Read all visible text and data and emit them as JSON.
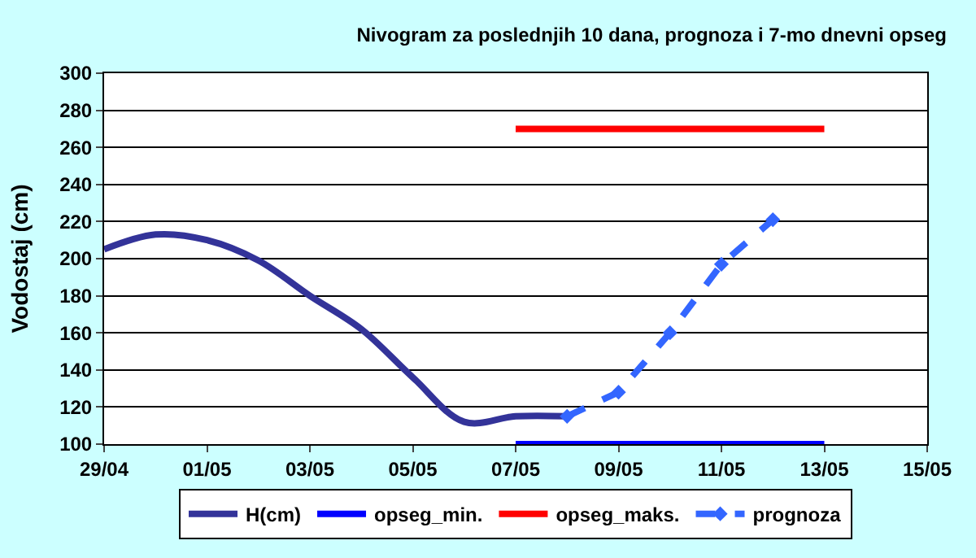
{
  "chart_data": {
    "type": "line",
    "title": "Nivogram za poslednjih 10 dana, prognoza i 7-mo dnevni opseg",
    "ylabel": "Vodostaj (cm)",
    "xlim": [
      "--04-29",
      "--05-15"
    ],
    "xticks": [
      {
        "value": "--04-29",
        "label": "29/04"
      },
      {
        "value": "--05-01",
        "label": "01/05"
      },
      {
        "value": "--05-03",
        "label": "03/05"
      },
      {
        "value": "--05-05",
        "label": "05/05"
      },
      {
        "value": "--05-07",
        "label": "07/05"
      },
      {
        "value": "--05-09",
        "label": "09/05"
      },
      {
        "value": "--05-11",
        "label": "11/05"
      },
      {
        "value": "--05-13",
        "label": "13/05"
      },
      {
        "value": "--05-15",
        "label": "15/05"
      }
    ],
    "ylim": [
      100,
      300
    ],
    "yticks": [
      100,
      120,
      140,
      160,
      180,
      200,
      220,
      240,
      260,
      280,
      300
    ],
    "grid": "y",
    "legend": "bottom",
    "series": [
      {
        "name": "H(cm)",
        "color": "#333399",
        "x": [
          "--04-29",
          "--04-30",
          "--05-01",
          "--05-02",
          "--05-03",
          "--05-04",
          "--05-05",
          "--05-06",
          "--05-07",
          "--05-08"
        ],
        "values": [
          205,
          213,
          210,
          199,
          180,
          162,
          136,
          112,
          115,
          115
        ],
        "line_style": "solid",
        "marker": "none"
      },
      {
        "name": "opseg_min.",
        "color": "#0000ff",
        "x": [
          "--05-07",
          "--05-13"
        ],
        "values": [
          100,
          100
        ],
        "line_style": "solid",
        "marker": "none"
      },
      {
        "name": "opseg_maks.",
        "color": "#ff0000",
        "x": [
          "--05-07",
          "--05-13"
        ],
        "values": [
          270,
          270
        ],
        "line_style": "solid",
        "marker": "none"
      },
      {
        "name": "prognoza",
        "color": "#3366ff",
        "x": [
          "--05-08",
          "--05-09",
          "--05-10",
          "--05-11",
          "--05-12"
        ],
        "values": [
          115,
          128,
          160,
          197,
          221
        ],
        "line_style": "dashed",
        "marker": "diamond"
      }
    ]
  }
}
